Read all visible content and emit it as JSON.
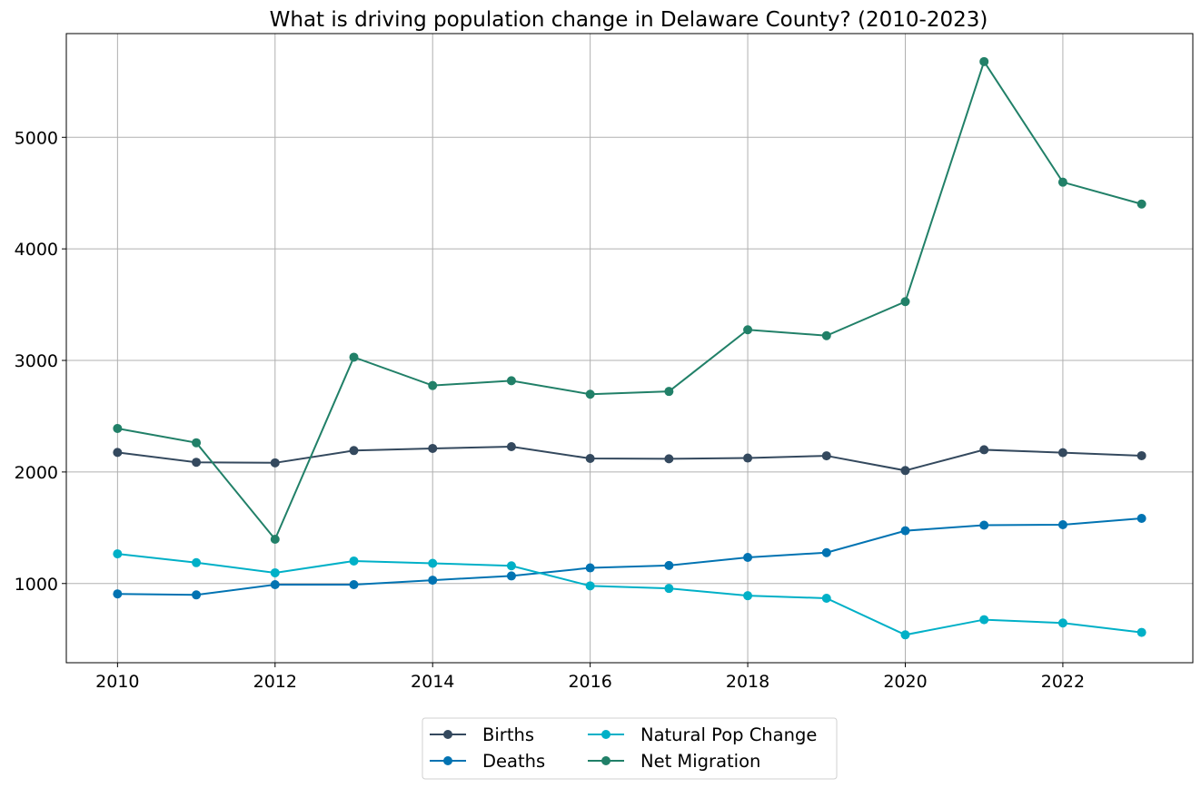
{
  "chart_data": {
    "type": "line",
    "title": "What is driving population change in Delaware County? (2010-2023)",
    "xlabel": "",
    "ylabel": "",
    "x": [
      2010,
      2011,
      2012,
      2013,
      2014,
      2015,
      2016,
      2017,
      2018,
      2019,
      2020,
      2021,
      2022,
      2023
    ],
    "xlim": [
      2009.35,
      2023.65
    ],
    "ylim": [
      290,
      5930
    ],
    "x_ticks": [
      2010,
      2012,
      2014,
      2016,
      2018,
      2020,
      2022
    ],
    "y_ticks": [
      1000,
      2000,
      3000,
      4000,
      5000
    ],
    "grid": true,
    "legend_position": "bottom-center, below plot",
    "legend_columns": 2,
    "marker": "circle",
    "series": [
      {
        "name": "Births",
        "color": "#34495e",
        "values": [
          2175,
          2087,
          2082,
          2192,
          2211,
          2227,
          2121,
          2118,
          2125,
          2145,
          2013,
          2199,
          2173,
          2146
        ]
      },
      {
        "name": "Deaths",
        "color": "#0173b2",
        "values": [
          907,
          898,
          990,
          990,
          1030,
          1068,
          1140,
          1162,
          1234,
          1277,
          1473,
          1523,
          1527,
          1584
        ]
      },
      {
        "name": "Natural Pop Change",
        "color": "#00b0c7",
        "values": [
          1266,
          1187,
          1096,
          1202,
          1181,
          1159,
          979,
          956,
          891,
          868,
          540,
          676,
          646,
          562
        ]
      },
      {
        "name": "Net Migration",
        "color": "#218068",
        "values": [
          2390,
          2262,
          1397,
          3029,
          2775,
          2818,
          2697,
          2722,
          3275,
          3222,
          3527,
          5679,
          4598,
          4402
        ]
      }
    ]
  }
}
